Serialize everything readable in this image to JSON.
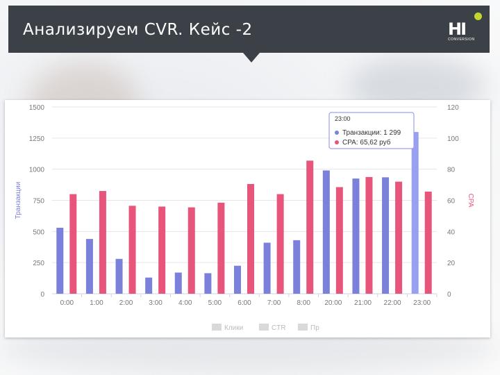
{
  "slide": {
    "title": "Анализируем CVR. Кейс -2",
    "logo_text": "HI",
    "logo_sub": "CONVERSION"
  },
  "colors": {
    "header_bg": "#3c4148",
    "transactions": "#7b80db",
    "transactions_highlight": "#9aa0f0",
    "cpa": "#e8557a",
    "grid": "#e6e6e6",
    "logo_dot": "#c2d62f"
  },
  "chart_data": {
    "type": "bar",
    "categories": [
      "0:00",
      "1:00",
      "2:00",
      "3:00",
      "4:00",
      "5:00",
      "6:00",
      "7:00",
      "8:00",
      "20:00",
      "21:00",
      "22:00",
      "23:00"
    ],
    "series": [
      {
        "name": "Транзакции",
        "axis": "left",
        "values": [
          530,
          440,
          280,
          130,
          170,
          165,
          225,
          410,
          430,
          990,
          925,
          935,
          1299
        ]
      },
      {
        "name": "CPA",
        "axis": "right",
        "values": [
          64,
          66,
          56.5,
          56,
          55.5,
          58.5,
          70.5,
          64,
          85.5,
          68.5,
          75,
          72,
          65.62
        ]
      }
    ],
    "left_axis": {
      "label": "Транзакции",
      "ticks": [
        "0",
        "250",
        "500",
        "750",
        "1000",
        "1250",
        "1500"
      ],
      "ylim": [
        0,
        1500
      ]
    },
    "right_axis": {
      "label": "CPA",
      "ticks": [
        "0",
        "20",
        "40",
        "60",
        "80",
        "100",
        "120"
      ],
      "ylim": [
        0,
        120
      ]
    },
    "legend": [
      "Клики",
      "CTR",
      "Пр"
    ],
    "tooltip": {
      "time": "23:00",
      "line1": "Транзакции: 1 299",
      "line2": "CPA: 65,62 руб"
    },
    "grid": true
  }
}
